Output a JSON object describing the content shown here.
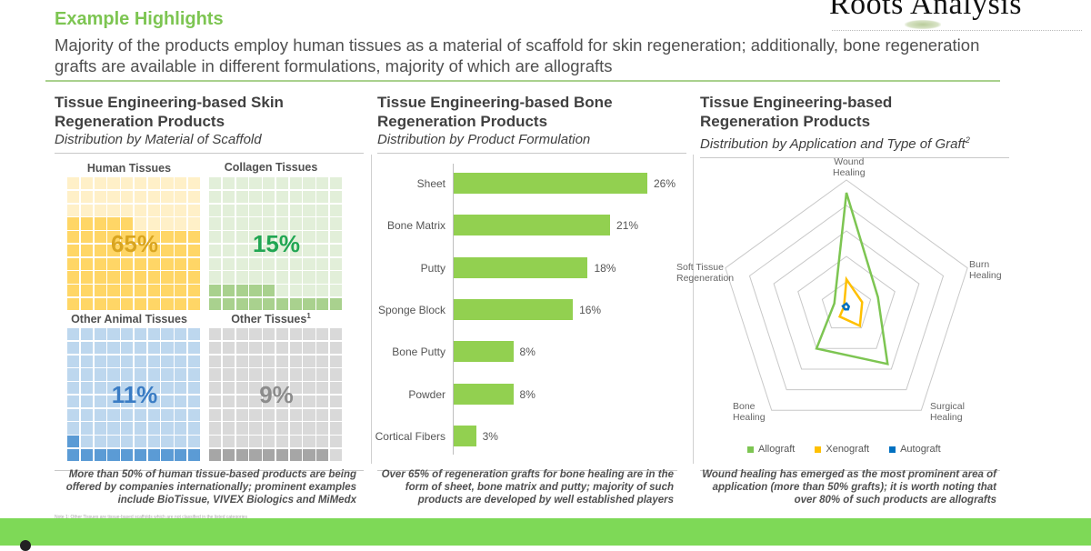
{
  "header": {
    "title": "Example Highlights",
    "subtitle": "Majority of the products employ human tissues as a material of scaffold for skin regeneration; additionally, bone regeneration grafts are available in different formulations, majority of which are allografts",
    "accent_color": "#7dc552",
    "logo_text": "Roots Analysis"
  },
  "panel1": {
    "title_line1": "Tissue Engineering-based Skin",
    "title_line2": "Regeneration Products",
    "subtitle": "Distribution by Material of Scaffold",
    "takeaway": "More than 50% of human tissue-based products are being offered by companies internationally; prominent examples include BioTissue, VIVEX Biologics and MiMedx"
  },
  "panel2": {
    "title_line1": "Tissue Engineering-based Bone",
    "title_line2": "Regeneration Products",
    "subtitle": "Distribution by Product Formulation",
    "takeaway": "Over 65% of regeneration grafts for bone healing are in the form of sheet, bone matrix and putty; majority of such products are developed by well established players"
  },
  "panel3": {
    "title_line1": "Tissue Engineering-based",
    "title_line2": "Regeneration Products",
    "subtitle": "Distribution by Application and Type of Graft",
    "subtitle_sup": "2",
    "takeaway": "Wound healing has emerged as the most prominent area of application (more than 50% grafts); it is worth noting that over 80% of such products are allografts"
  },
  "chart_data": [
    {
      "type": "waffle",
      "title": "Tissue Engineering-based Skin Regeneration Products",
      "subtitle": "Distribution by Material of Scaffold",
      "categories": [
        "Human Tissues",
        "Collagen Tissues",
        "Other Animal Tissues",
        "Other Tissues"
      ],
      "values": [
        65,
        15,
        11,
        9
      ],
      "labels": [
        "65%",
        "15%",
        "11%",
        "9%"
      ],
      "footnote_markers": [
        "",
        "",
        "",
        "1"
      ],
      "colors": [
        {
          "filled": "#ffd666",
          "empty": "#fff0c8",
          "text": "#d9a520"
        },
        {
          "filled": "#a9d18e",
          "empty": "#e2efd9",
          "text": "#21a653"
        },
        {
          "filled": "#5b9bd5",
          "empty": "#bdd7ee",
          "text": "#3a7cc4"
        },
        {
          "filled": "#a6a6a6",
          "empty": "#d9d9d9",
          "text": "#8c8c8c"
        }
      ]
    },
    {
      "type": "bar",
      "orientation": "horizontal",
      "title": "Tissue Engineering-based Bone Regeneration Products",
      "subtitle": "Distribution by Product Formulation",
      "categories": [
        "Sheet",
        "Bone Matrix",
        "Putty",
        "Sponge Block",
        "Bone Putty",
        "Powder",
        "Cortical Fibers"
      ],
      "values": [
        26,
        21,
        18,
        16,
        8,
        8,
        3
      ],
      "labels": [
        "26%",
        "21%",
        "18%",
        "16%",
        "8%",
        "8%",
        "3%"
      ],
      "color": "#92d050",
      "xlabel": "",
      "ylabel": ""
    },
    {
      "type": "radar",
      "title": "Tissue Engineering-based Regeneration Products",
      "subtitle": "Distribution by Application and Type of Graft",
      "axes": [
        "Wound Healing",
        "Burn Healing",
        "Surgical Healing",
        "Bone Healing",
        "Soft Tissue Regeneration"
      ],
      "rings": 5,
      "series": [
        {
          "name": "Allograft",
          "color": "#7dc552",
          "values": [
            0.9,
            0.26,
            0.55,
            0.4,
            0.1
          ]
        },
        {
          "name": "Xenograft",
          "color": "#ffc000",
          "values": [
            0.22,
            0.13,
            0.18,
            0.09,
            0.02
          ]
        },
        {
          "name": "Autograft",
          "color": "#0070c0",
          "values": [
            0.03,
            0.02,
            0.02,
            0.02,
            0.03
          ]
        }
      ],
      "legend_position": "bottom"
    }
  ],
  "footer": {
    "note": "Note 1: Other Tissues are tissue-based scaffolds which are not classified in the listed categories",
    "bar_color": "#7ed957"
  }
}
